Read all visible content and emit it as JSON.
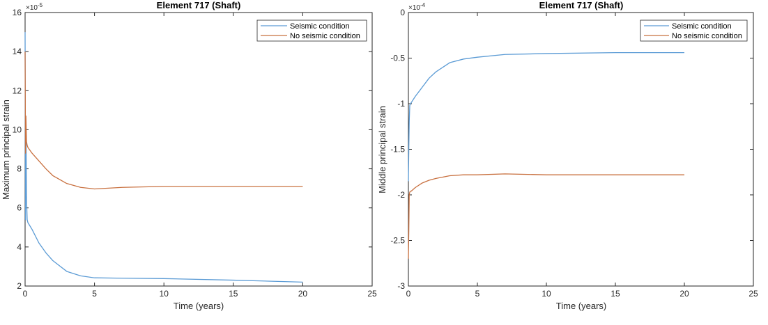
{
  "chart_data": [
    {
      "type": "line",
      "title": "Element 717 (Shaft)",
      "xlabel": "Time (years)",
      "ylabel": "Maximum principal strain",
      "multiplier": "×10",
      "multiplier_exp": "-5",
      "xlim": [
        0,
        25
      ],
      "ylim": [
        2,
        16
      ],
      "xticks": [
        0,
        5,
        10,
        15,
        20,
        25
      ],
      "yticks": [
        2,
        4,
        6,
        8,
        10,
        12,
        14,
        16
      ],
      "grid": false,
      "legend_position": "top-right",
      "series": [
        {
          "name": "Seismic condition",
          "color": "#5b9bd5",
          "x": [
            0,
            0.03,
            0.06,
            0.1,
            0.15,
            0.2,
            0.5,
            1,
            1.5,
            2,
            3,
            4,
            5,
            7,
            10,
            15,
            20
          ],
          "y": [
            15.0,
            5.4,
            10.5,
            6.6,
            5.4,
            5.25,
            4.9,
            4.2,
            3.7,
            3.3,
            2.75,
            2.52,
            2.42,
            2.4,
            2.38,
            2.3,
            2.2
          ]
        },
        {
          "name": "No seismic condition",
          "color": "#c8703f",
          "x": [
            0,
            0.03,
            0.06,
            0.1,
            0.15,
            0.2,
            0.5,
            1,
            1.5,
            2,
            3,
            4,
            5,
            7,
            10,
            15,
            20
          ],
          "y": [
            14.0,
            8.8,
            10.7,
            9.4,
            9.2,
            9.1,
            8.8,
            8.4,
            8.0,
            7.65,
            7.25,
            7.05,
            6.97,
            7.05,
            7.1,
            7.1,
            7.1
          ]
        }
      ]
    },
    {
      "type": "line",
      "title": "Element 717 (Shaft)",
      "xlabel": "Time (years)",
      "ylabel": "Middle principal strain",
      "multiplier": "×10",
      "multiplier_exp": "-4",
      "xlim": [
        0,
        25
      ],
      "ylim": [
        -3,
        0
      ],
      "xticks": [
        0,
        5,
        10,
        15,
        20,
        25
      ],
      "yticks": [
        -3,
        -2.5,
        -2,
        -1.5,
        -1,
        -0.5,
        0
      ],
      "grid": false,
      "legend_position": "top-right",
      "series": [
        {
          "name": "Seismic condition",
          "color": "#5b9bd5",
          "x": [
            0,
            0.03,
            0.06,
            0.1,
            0.15,
            0.2,
            0.5,
            1,
            1.5,
            2,
            3,
            4,
            5,
            7,
            10,
            15,
            20
          ],
          "y": [
            -1.85,
            -1.5,
            -1.2,
            -1.02,
            -1.0,
            -0.99,
            -0.92,
            -0.82,
            -0.72,
            -0.65,
            -0.55,
            -0.51,
            -0.49,
            -0.46,
            -0.45,
            -0.44,
            -0.44
          ]
        },
        {
          "name": "No seismic condition",
          "color": "#c8703f",
          "x": [
            0,
            0.03,
            0.06,
            0.1,
            0.15,
            0.2,
            0.5,
            1,
            1.5,
            2,
            3,
            4,
            5,
            7,
            10,
            15,
            20
          ],
          "y": [
            -2.7,
            -2.4,
            -2.0,
            -1.97,
            -1.96,
            -1.96,
            -1.92,
            -1.87,
            -1.84,
            -1.82,
            -1.79,
            -1.78,
            -1.78,
            -1.77,
            -1.78,
            -1.78,
            -1.78
          ]
        }
      ]
    }
  ]
}
